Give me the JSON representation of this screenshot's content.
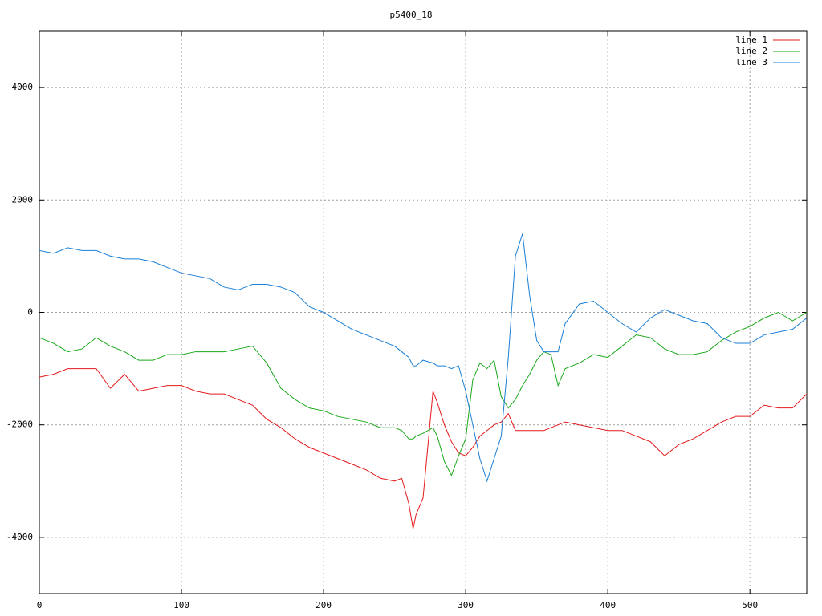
{
  "chart_data": {
    "type": "line",
    "title": "p5400_18",
    "x": [
      0,
      10,
      20,
      30,
      40,
      50,
      60,
      70,
      80,
      90,
      100,
      110,
      120,
      130,
      140,
      150,
      160,
      170,
      180,
      190,
      200,
      210,
      220,
      230,
      240,
      250,
      255,
      260,
      263,
      265,
      270,
      277,
      280,
      285,
      290,
      295,
      300,
      305,
      310,
      315,
      320,
      325,
      330,
      335,
      340,
      345,
      350,
      355,
      360,
      365,
      370,
      380,
      390,
      400,
      410,
      420,
      430,
      440,
      450,
      460,
      470,
      480,
      490,
      500,
      510,
      520,
      530,
      540
    ],
    "series": [
      {
        "name": "line 1",
        "color": "#e41a1c",
        "values": [
          -1150,
          -1100,
          -1000,
          -1000,
          -1000,
          -1350,
          -1100,
          -1400,
          -1350,
          -1300,
          -1300,
          -1400,
          -1450,
          -1450,
          -1550,
          -1650,
          -1900,
          -2050,
          -2250,
          -2400,
          -2500,
          -2600,
          -2700,
          -2800,
          -2950,
          -3000,
          -2950,
          -3400,
          -3850,
          -3600,
          -3300,
          -1400,
          -1600,
          -2000,
          -2300,
          -2500,
          -2550,
          -2400,
          -2200,
          -2100,
          -2000,
          -1950,
          -1800,
          -2100,
          -2100,
          -2100,
          -2100,
          -2100,
          -2050,
          -2000,
          -1950,
          -2000,
          -2050,
          -2100,
          -2100,
          -2200,
          -2300,
          -2550,
          -2350,
          -2250,
          -2100,
          -1950,
          -1850,
          -1850,
          -1650,
          -1700,
          -1700,
          -1450
        ]
      },
      {
        "name": "line 2",
        "color": "#1aa81a",
        "values": [
          -450,
          -550,
          -700,
          -650,
          -450,
          -600,
          -700,
          -850,
          -850,
          -750,
          -750,
          -700,
          -700,
          -700,
          -650,
          -600,
          -900,
          -1350,
          -1550,
          -1700,
          -1750,
          -1850,
          -1900,
          -1950,
          -2050,
          -2050,
          -2100,
          -2250,
          -2250,
          -2200,
          -2150,
          -2050,
          -2200,
          -2650,
          -2900,
          -2550,
          -2250,
          -1200,
          -900,
          -1000,
          -850,
          -1500,
          -1700,
          -1550,
          -1300,
          -1100,
          -850,
          -700,
          -750,
          -1300,
          -1000,
          -900,
          -750,
          -800,
          -600,
          -400,
          -450,
          -650,
          -750,
          -750,
          -700,
          -500,
          -350,
          -250,
          -100,
          0,
          -150,
          0
        ]
      },
      {
        "name": "line 3",
        "color": "#1a7fd6",
        "values": [
          1100,
          1050,
          1150,
          1100,
          1100,
          1000,
          950,
          950,
          900,
          800,
          700,
          650,
          600,
          450,
          400,
          500,
          500,
          450,
          350,
          100,
          0,
          -150,
          -300,
          -400,
          -500,
          -600,
          -700,
          -800,
          -950,
          -950,
          -850,
          -900,
          -950,
          -950,
          -1000,
          -950,
          -1400,
          -2000,
          -2600,
          -3000,
          -2600,
          -2200,
          -800,
          1000,
          1400,
          300,
          -500,
          -700,
          -700,
          -700,
          -200,
          150,
          200,
          0,
          -200,
          -350,
          -100,
          50,
          -50,
          -150,
          -200,
          -450,
          -550,
          -550,
          -400,
          -350,
          -300,
          -100
        ]
      }
    ],
    "xlim": [
      0,
      540
    ],
    "xticks": [
      0,
      100,
      200,
      300,
      400,
      500
    ],
    "ylim": [
      -5000,
      5000
    ],
    "yticks": [
      -4000,
      -2000,
      0,
      2000,
      4000
    ],
    "grid": true,
    "legend": "top-right"
  }
}
